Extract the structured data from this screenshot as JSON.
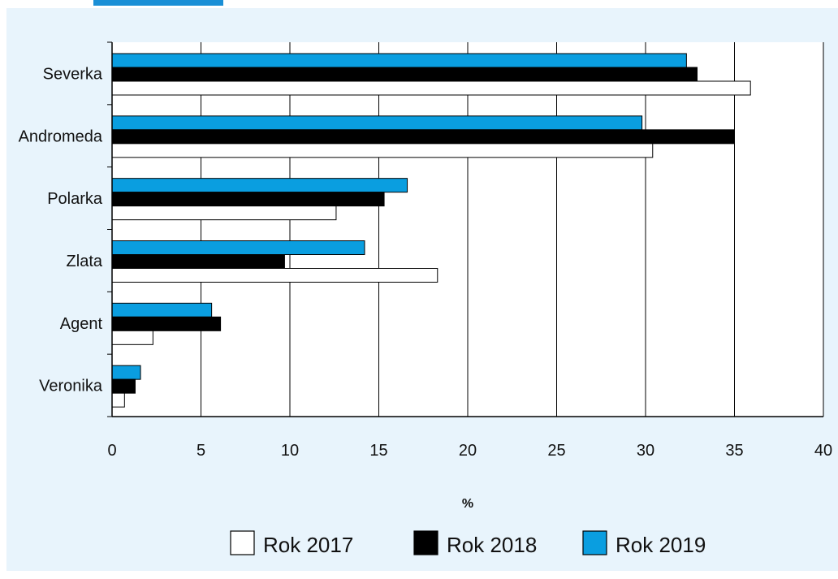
{
  "chart_data": {
    "type": "bar",
    "orientation": "horizontal",
    "title": "",
    "xlabel": "%",
    "ylabel": "",
    "xlim": [
      0,
      40
    ],
    "xticks": [
      0,
      5,
      10,
      15,
      20,
      25,
      30,
      35,
      40
    ],
    "grid": "vertical",
    "legend_position": "bottom",
    "categories": [
      "Severka",
      "Andromeda",
      "Polarka",
      "Zlata",
      "Agent",
      "Veronika"
    ],
    "series": [
      {
        "name": "Rok 2017",
        "color": "#ffffff",
        "values": [
          35.9,
          30.4,
          12.6,
          18.3,
          2.3,
          0.7
        ]
      },
      {
        "name": "Rok 2018",
        "color": "#000000",
        "values": [
          32.9,
          35.0,
          15.3,
          9.7,
          6.1,
          1.3
        ]
      },
      {
        "name": "Rok 2019",
        "color": "#0a9ee0",
        "values": [
          32.3,
          29.8,
          16.6,
          14.2,
          5.6,
          1.6
        ]
      }
    ]
  }
}
